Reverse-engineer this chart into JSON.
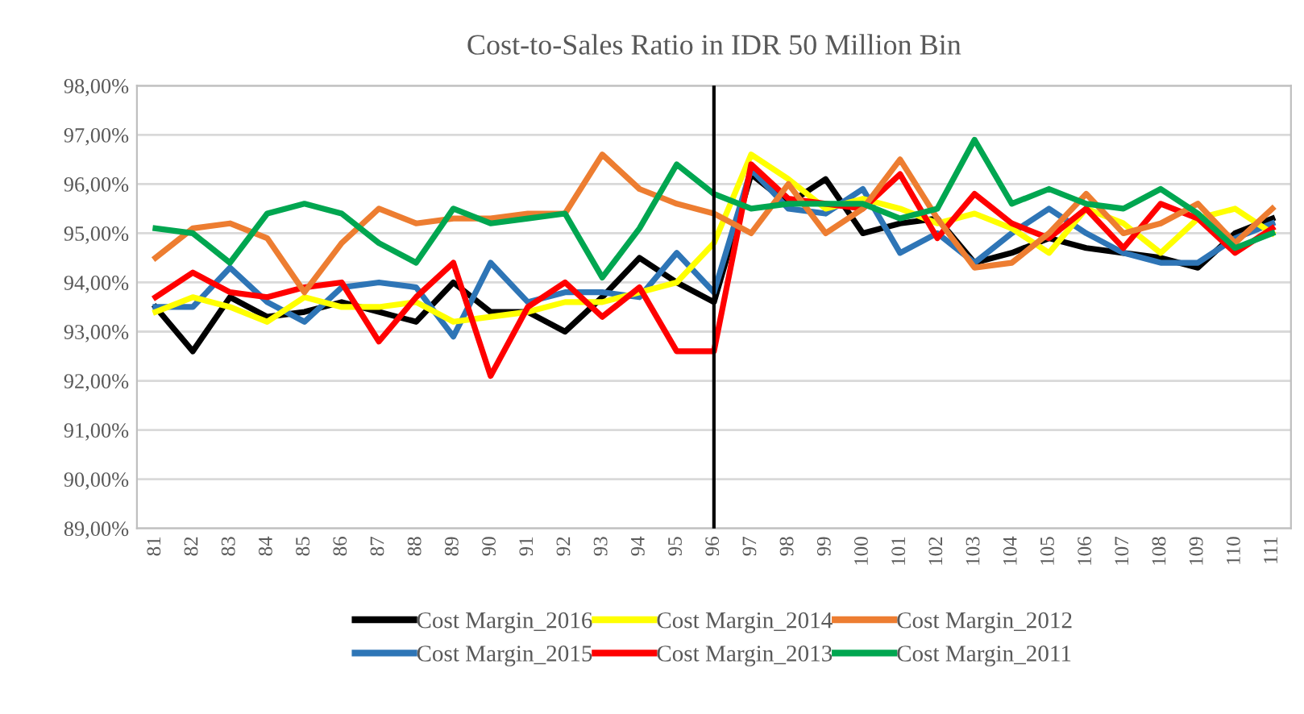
{
  "chart_data": {
    "type": "line",
    "title": "Cost-to-Sales Ratio in IDR 50 Million Bin",
    "categories": [
      "81",
      "82",
      "83",
      "84",
      "85",
      "86",
      "87",
      "88",
      "89",
      "90",
      "91",
      "92",
      "93",
      "94",
      "95",
      "96",
      "97",
      "98",
      "99",
      "100",
      "101",
      "102",
      "103",
      "104",
      "105",
      "106",
      "107",
      "108",
      "109",
      "110",
      "111"
    ],
    "series": [
      {
        "name": "Cost Margin_2016",
        "color": "#000000",
        "values": [
          93.5,
          92.6,
          93.7,
          93.3,
          93.4,
          93.6,
          93.4,
          93.2,
          94.0,
          93.4,
          93.4,
          93.0,
          93.7,
          94.5,
          94.0,
          93.6,
          96.2,
          95.6,
          96.1,
          95.0,
          95.2,
          95.3,
          94.4,
          94.6,
          94.9,
          94.7,
          94.6,
          94.5,
          94.3,
          95.0,
          95.3
        ]
      },
      {
        "name": "Cost Margin_2015",
        "color": "#2e75b6",
        "values": [
          93.5,
          93.5,
          94.3,
          93.6,
          93.2,
          93.9,
          94.0,
          93.9,
          92.9,
          94.4,
          93.6,
          93.8,
          93.8,
          93.7,
          94.6,
          93.8,
          96.3,
          95.5,
          95.4,
          95.9,
          94.6,
          95.0,
          94.4,
          95.0,
          95.5,
          95.0,
          94.6,
          94.4,
          94.4,
          94.9,
          95.2
        ]
      },
      {
        "name": "Cost Margin_2014",
        "color": "#ffff00",
        "values": [
          93.4,
          93.7,
          93.5,
          93.2,
          93.7,
          93.5,
          93.5,
          93.6,
          93.2,
          93.3,
          93.4,
          93.6,
          93.6,
          93.8,
          94.0,
          94.8,
          96.6,
          96.1,
          95.5,
          95.7,
          95.5,
          95.2,
          95.4,
          95.1,
          94.6,
          95.5,
          95.2,
          94.6,
          95.3,
          95.5,
          95.0
        ]
      },
      {
        "name": "Cost Margin_2013",
        "color": "#ff0000",
        "values": [
          93.7,
          94.2,
          93.8,
          93.7,
          93.9,
          94.0,
          92.8,
          93.7,
          94.4,
          92.1,
          93.5,
          94.0,
          93.3,
          93.9,
          92.6,
          92.6,
          96.4,
          95.7,
          95.6,
          95.5,
          96.2,
          94.9,
          95.8,
          95.2,
          94.9,
          95.5,
          94.7,
          95.6,
          95.3,
          94.6,
          95.1
        ]
      },
      {
        "name": "Cost Margin_2012",
        "color": "#ed7d31",
        "values": [
          94.5,
          95.1,
          95.2,
          94.9,
          93.8,
          94.8,
          95.5,
          95.2,
          95.3,
          95.3,
          95.4,
          95.4,
          96.6,
          95.9,
          95.6,
          95.4,
          95.0,
          96.0,
          95.0,
          95.5,
          96.5,
          95.3,
          94.3,
          94.4,
          95.0,
          95.8,
          95.0,
          95.2,
          95.6,
          94.8,
          95.5
        ]
      },
      {
        "name": "Cost Margin_2011",
        "color": "#00a650",
        "values": [
          95.1,
          95.0,
          94.4,
          95.4,
          95.6,
          95.4,
          94.8,
          94.4,
          95.5,
          95.2,
          95.3,
          95.4,
          94.1,
          95.1,
          96.4,
          95.8,
          95.5,
          95.6,
          95.6,
          95.6,
          95.3,
          95.5,
          96.9,
          95.6,
          95.9,
          95.6,
          95.5,
          95.9,
          95.4,
          94.7,
          95.0
        ]
      }
    ],
    "ylim": [
      89,
      98
    ],
    "yticks": [
      {
        "value": 89,
        "label": "89,00%"
      },
      {
        "value": 90,
        "label": "90,00%"
      },
      {
        "value": 91,
        "label": "91,00%"
      },
      {
        "value": 92,
        "label": "92,00%"
      },
      {
        "value": 93,
        "label": "93,00%"
      },
      {
        "value": 94,
        "label": "94,00%"
      },
      {
        "value": 95,
        "label": "95,00%"
      },
      {
        "value": 96,
        "label": "96,00%"
      },
      {
        "value": 97,
        "label": "97,00%"
      },
      {
        "value": 98,
        "label": "98,00%"
      }
    ],
    "ref_lines": [
      {
        "axis": "x",
        "value": "96",
        "color": "#000000"
      }
    ],
    "grid": "y",
    "legend": "bottom",
    "marker": "none",
    "line_style": "solid"
  }
}
